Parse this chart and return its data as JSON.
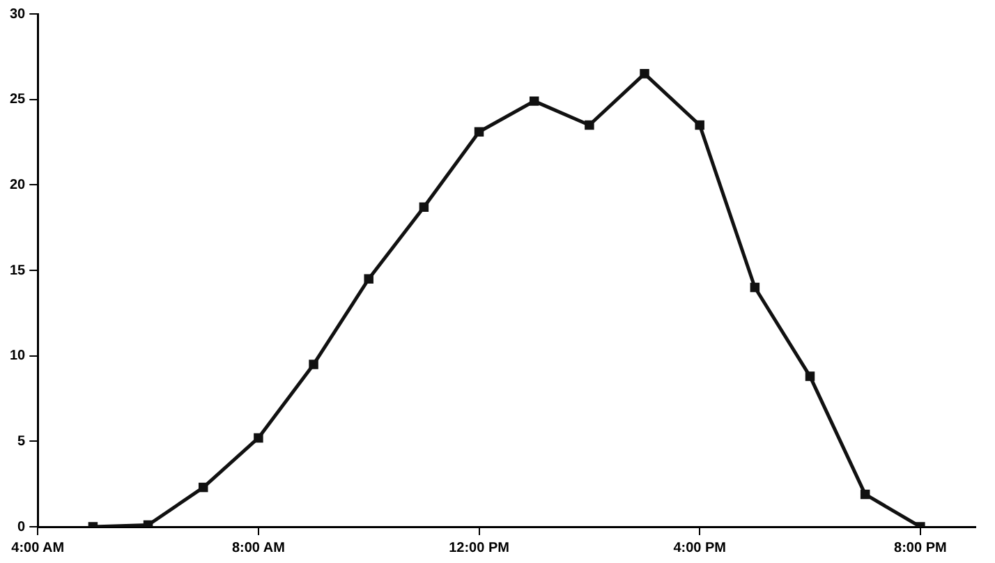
{
  "chart_data": {
    "type": "line",
    "x": [
      5,
      6,
      7,
      8,
      9,
      10,
      11,
      12,
      13,
      14,
      15,
      16,
      17,
      18,
      19,
      20
    ],
    "series": [
      {
        "color": "#111111",
        "values": [
          0,
          0.1,
          2.3,
          5.2,
          9.5,
          14.5,
          18.7,
          23.1,
          24.9,
          23.5,
          26.5,
          23.5,
          14.0,
          8.8,
          1.9,
          0
        ]
      }
    ],
    "xlim": [
      4,
      21
    ],
    "xticks": [
      {
        "value": 4,
        "label": "4:00 AM"
      },
      {
        "value": 8,
        "label": "8:00 AM"
      },
      {
        "value": 12,
        "label": "12:00 PM"
      },
      {
        "value": 16,
        "label": "4:00 PM"
      },
      {
        "value": 20,
        "label": "8:00 PM"
      }
    ],
    "ylim": [
      0,
      30
    ],
    "yticks": [
      0,
      5,
      10,
      15,
      20,
      25,
      30
    ],
    "grid": false,
    "legend": false,
    "marker": "square",
    "line_style": "solid"
  }
}
